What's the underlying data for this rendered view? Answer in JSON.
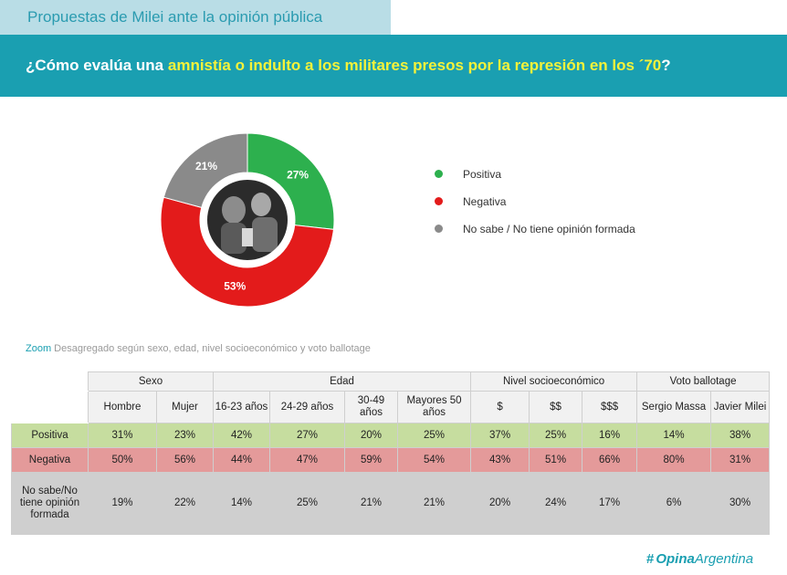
{
  "header": {
    "section_label": "Propuestas de Milei ante la opinión pública",
    "question_prefix": "¿Cómo evalúa una ",
    "question_highlight": "amnistía o indulto a los militares presos por la represión en los ´70",
    "question_suffix": "?"
  },
  "chart_data": {
    "type": "pie",
    "donut": true,
    "labels": [
      "Positiva",
      "Negativa",
      "No sabe / No tiene opinión formada"
    ],
    "values": [
      27,
      53,
      21
    ],
    "value_labels": [
      "27%",
      "53%",
      "21%"
    ],
    "colors": [
      "#2db04e",
      "#e31b1b",
      "#8a8a8a"
    ],
    "start_angle_deg": 0,
    "legend_position": "right"
  },
  "center_image": {
    "icon": "historical-photo",
    "description_hidden": true
  },
  "legend": {
    "items": [
      {
        "label": "Positiva",
        "color": "#2db04e"
      },
      {
        "label": "Negativa",
        "color": "#e31b1b"
      },
      {
        "label": "No sabe / No tiene opinión formada",
        "color": "#8a8a8a"
      }
    ]
  },
  "zoom": {
    "label": "Zoom",
    "text": " Desagregado según sexo, edad, nivel socioeconómico y voto ballotage"
  },
  "table": {
    "groups": [
      "Sexo",
      "Edad",
      "Nivel socioeconómico",
      "Voto ballotage"
    ],
    "columns": [
      "Hombre",
      "Mujer",
      "16-23 años",
      "24-29 años",
      "30-49 años",
      "Mayores 50 años",
      "$",
      "$$",
      "$$$",
      "Sergio Massa",
      "Javier Milei"
    ],
    "rows": [
      {
        "label": "Positiva",
        "values": [
          "31%",
          "23%",
          "42%",
          "27%",
          "20%",
          "25%",
          "37%",
          "25%",
          "16%",
          "14%",
          "38%"
        ]
      },
      {
        "label": "Negativa",
        "values": [
          "50%",
          "56%",
          "44%",
          "47%",
          "59%",
          "54%",
          "43%",
          "51%",
          "66%",
          "80%",
          "31%"
        ]
      },
      {
        "label": "No sabe/No tiene opinión formada",
        "values": [
          "19%",
          "22%",
          "14%",
          "25%",
          "21%",
          "21%",
          "20%",
          "24%",
          "17%",
          "6%",
          "30%"
        ]
      }
    ]
  },
  "brand": {
    "prefix": "Opina",
    "suffix": "Argentina"
  }
}
